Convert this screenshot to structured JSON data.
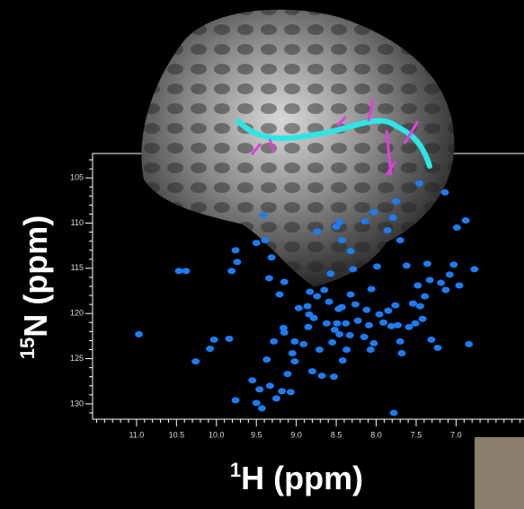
{
  "chart_data": {
    "type": "scatter",
    "xlabel_sup": "1",
    "xlabel": "H (ppm)",
    "ylabel_sup": "15",
    "ylabel": "N (ppm)",
    "color": "#1e7cf2",
    "xlim": [
      11.55,
      6.15
    ],
    "ylim": [
      102.3,
      131.7
    ],
    "xticks": [
      {
        "value": 11.0,
        "label": "11.0"
      },
      {
        "value": 10.5,
        "label": "10.5"
      },
      {
        "value": 10.0,
        "label": "10.0"
      },
      {
        "value": 9.5,
        "label": "9.5"
      },
      {
        "value": 9.0,
        "label": "9.0"
      },
      {
        "value": 8.5,
        "label": "8.5"
      },
      {
        "value": 8.0,
        "label": "8.0"
      },
      {
        "value": 7.5,
        "label": "7.5"
      },
      {
        "value": 7.0,
        "label": "7.0"
      }
    ],
    "xminorticks": [
      11.5,
      11.4,
      11.3,
      11.2,
      11.1,
      10.9,
      10.8,
      10.7,
      10.6,
      10.4,
      10.3,
      10.2,
      10.1,
      9.9,
      9.8,
      9.7,
      9.6,
      9.4,
      9.3,
      9.2,
      9.1,
      8.9,
      8.8,
      8.7,
      8.6,
      8.4,
      8.3,
      8.2,
      8.1,
      7.9,
      7.8,
      7.7,
      7.6,
      7.4,
      7.3,
      7.2,
      7.1,
      6.9,
      6.8,
      6.7,
      6.6,
      6.5,
      6.4,
      6.3,
      6.2
    ],
    "yticks": [
      105,
      110,
      115,
      120,
      125,
      130
    ],
    "yminorticks": [
      103,
      104,
      106,
      107,
      108,
      109,
      111,
      112,
      113,
      114,
      116,
      117,
      118,
      119,
      121,
      122,
      123,
      124,
      126,
      127,
      128,
      129,
      131
    ],
    "x": [
      10.97,
      10.47,
      10.38,
      10.26,
      10.08,
      10.03,
      9.84,
      9.81,
      9.76,
      9.74,
      9.5,
      9.41,
      9.39,
      9.34,
      9.31,
      9.21,
      9.15,
      9.37,
      9.33,
      9.25,
      9.18,
      9.07,
      9.11,
      9.02,
      9.46,
      9.43,
      9.55,
      9.76,
      9.5,
      9.28,
      9.16,
      9.05,
      9.02,
      8.91,
      8.85,
      8.84,
      8.86,
      8.83,
      8.78,
      8.71,
      8.68,
      8.74,
      8.74,
      8.65,
      8.62,
      8.59,
      8.57,
      8.55,
      8.52,
      8.49,
      8.47,
      8.46,
      8.43,
      8.42,
      8.38,
      8.37,
      8.33,
      8.32,
      8.29,
      8.26,
      8.23,
      8.15,
      8.12,
      8.09,
      8.07,
      8.06,
      8.03,
      7.99,
      7.96,
      7.91,
      7.85,
      7.81,
      7.76,
      7.73,
      7.7,
      7.68,
      7.62,
      7.59,
      7.54,
      7.51,
      7.48,
      7.45,
      7.42,
      7.39,
      7.36,
      7.33,
      7.31,
      7.23,
      7.19,
      7.13,
      7.08,
      7.03,
      6.99,
      6.96,
      6.88,
      6.84,
      6.77,
      8.14,
      8.03,
      7.86,
      7.79,
      7.75,
      8.43,
      8.46,
      8.5,
      8.32,
      7.7,
      7.46,
      7.14,
      7.78,
      8.8,
      8.53,
      8.97,
      9.15
    ],
    "y": [
      122.3,
      115.3,
      115.3,
      125.3,
      123.9,
      122.9,
      122.8,
      115.3,
      113.0,
      114.3,
      112.2,
      109.1,
      111.9,
      116.1,
      113.8,
      117.9,
      116.5,
      125.1,
      128.0,
      129.4,
      128.6,
      128.7,
      126.7,
      125.3,
      128.4,
      130.5,
      127.4,
      129.6,
      129.9,
      123.1,
      121.6,
      124.4,
      123.1,
      123.4,
      121.5,
      120.1,
      119.2,
      117.6,
      120.5,
      124.0,
      126.9,
      118.1,
      110.9,
      117.4,
      121.1,
      118.7,
      115.6,
      123.2,
      121.8,
      121.1,
      119.5,
      122.3,
      119.3,
      125.2,
      121.1,
      124.0,
      122.4,
      117.9,
      115.1,
      119.0,
      120.8,
      122.6,
      119.6,
      121.3,
      124.0,
      117.3,
      123.3,
      114.8,
      120.1,
      121.0,
      119.7,
      121.4,
      119.1,
      121.3,
      123.1,
      124.4,
      114.7,
      121.5,
      118.9,
      121.1,
      116.9,
      119.2,
      120.6,
      118.1,
      114.5,
      116.3,
      122.9,
      123.8,
      116.6,
      117.4,
      115.7,
      114.6,
      110.5,
      116.9,
      109.7,
      123.4,
      115.1,
      109.8,
      108.8,
      110.8,
      109.4,
      107.6,
      111.9,
      109.9,
      110.4,
      113.1,
      111.9,
      105.6,
      106.6,
      131.0,
      126.4,
      127.0,
      119.4,
      122.1
    ]
  }
}
